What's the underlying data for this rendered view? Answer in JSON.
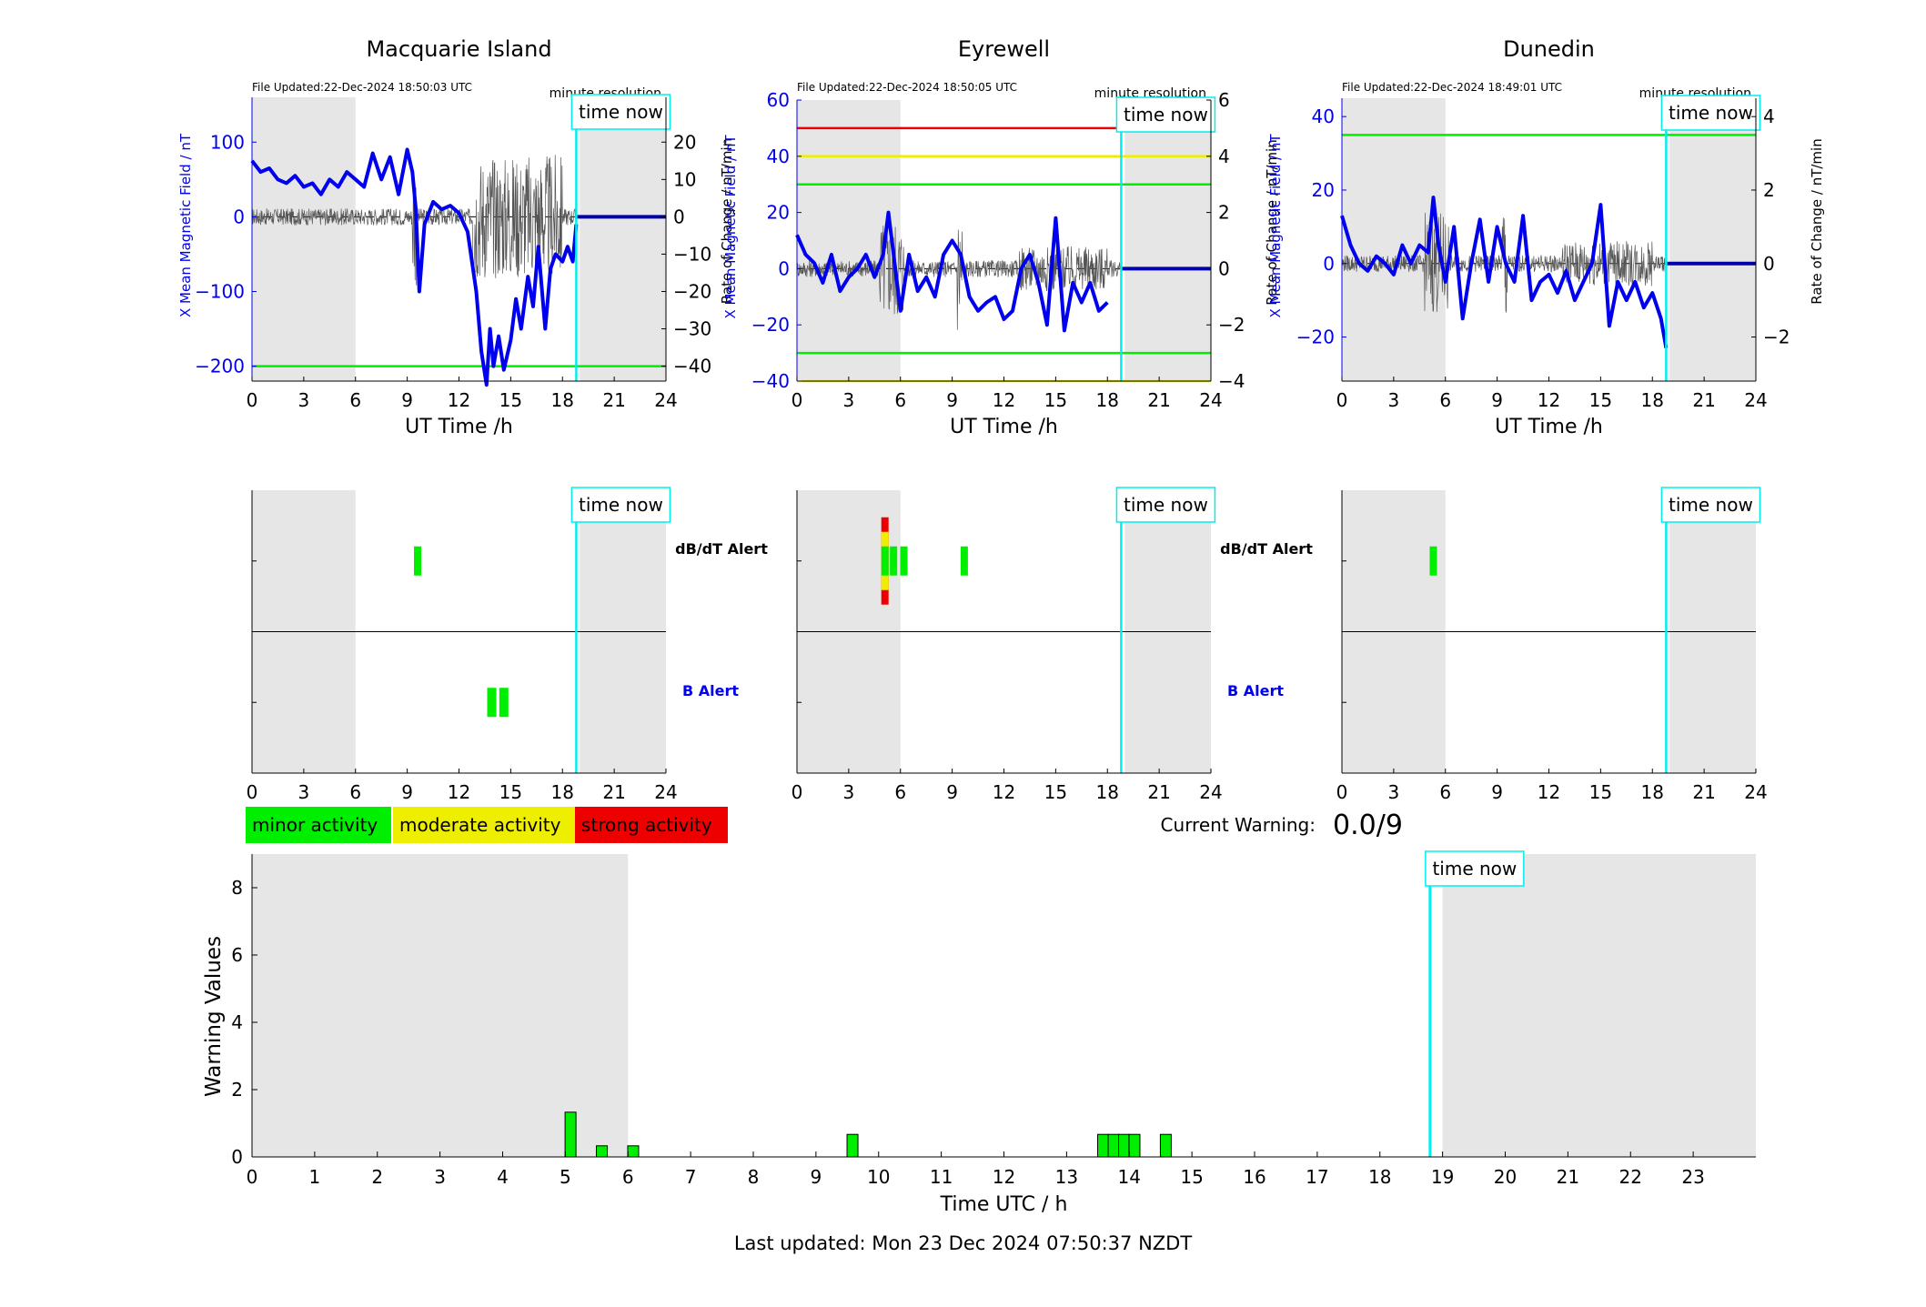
{
  "footer": {
    "last_updated": "Last updated: Mon 23 Dec 2024 07:50:37 NZDT"
  },
  "colors": {
    "field": "#0000ee",
    "rate": "#555555",
    "time_now": "#00eeee",
    "night": "#e6e6e6",
    "green": "#00ee00",
    "yellow": "#eeee00",
    "red": "#ee0000"
  },
  "time_now_label": "time now",
  "legend": {
    "minor": "minor activity",
    "moderate": "moderate activity",
    "strong": "strong activity"
  },
  "current_warning": {
    "label": "Current Warning:",
    "value": "0.0/9"
  },
  "alerts": {
    "dbdt": "dB/dT Alert",
    "b": "B Alert"
  },
  "chart_data": [
    {
      "type": "line",
      "title": "Macquarie Island",
      "file_updated": "File Updated:22-Dec-2024 18:50:03 UTC",
      "resolution": "minute resolution",
      "xlabel": "UT Time /h",
      "ylabel": "X Mean Magnetic Field / nT",
      "y2label": "Rate of Change / nT/min",
      "xlim": [
        0,
        24
      ],
      "ylim": [
        -220,
        160
      ],
      "y2lim": [
        -44,
        32
      ],
      "xticks": [
        0,
        3,
        6,
        9,
        12,
        15,
        18,
        21,
        24
      ],
      "yticks": [
        -200,
        -100,
        0,
        100
      ],
      "y2ticks": [
        -40,
        -30,
        -20,
        -10,
        0,
        10,
        20
      ],
      "night": [
        [
          0,
          6
        ],
        [
          19,
          24
        ]
      ],
      "time_now": 18.8,
      "thresholds": [
        {
          "value": -200,
          "color": "green"
        }
      ],
      "series": [
        {
          "x": [
            0,
            0.5,
            1,
            1.5,
            2,
            2.5,
            3,
            3.5,
            4,
            4.5,
            5,
            5.5,
            6,
            6.5,
            7,
            7.5,
            8,
            8.5,
            9,
            9.3,
            9.5,
            9.7,
            10,
            10.5,
            11,
            11.5,
            12,
            12.5,
            13,
            13.3,
            13.6,
            13.8,
            14,
            14.3,
            14.6,
            15,
            15.3,
            15.6,
            16,
            16.3,
            16.6,
            17,
            17.3,
            17.6,
            18,
            18.3,
            18.6,
            18.8
          ],
          "y": [
            75,
            60,
            65,
            50,
            45,
            55,
            40,
            45,
            30,
            50,
            40,
            60,
            50,
            40,
            85,
            50,
            80,
            30,
            90,
            60,
            10,
            -100,
            -10,
            20,
            10,
            15,
            5,
            -20,
            -100,
            -180,
            -225,
            -150,
            -200,
            -160,
            -205,
            -165,
            -110,
            -150,
            -80,
            -120,
            -40,
            -150,
            -70,
            -50,
            -60,
            -40,
            -60,
            -10
          ]
        }
      ]
    },
    {
      "type": "line",
      "title": "Eyrewell",
      "file_updated": "File Updated:22-Dec-2024 18:50:05 UTC",
      "resolution": "minute resolution",
      "xlabel": "UT Time /h",
      "ylabel": "X Mean Magnetic Field / nT",
      "y2label": "Rate of Change / nT/min",
      "xlim": [
        0,
        24
      ],
      "ylim": [
        -40,
        60
      ],
      "y2lim": [
        -4,
        6
      ],
      "xticks": [
        0,
        3,
        6,
        9,
        12,
        15,
        18,
        21,
        24
      ],
      "yticks": [
        -40,
        -20,
        0,
        20,
        40,
        60
      ],
      "y2ticks": [
        -4,
        -2,
        0,
        2,
        4,
        6
      ],
      "night": [
        [
          0,
          6
        ],
        [
          19,
          24
        ]
      ],
      "time_now": 18.8,
      "thresholds": [
        {
          "value": 50,
          "color": "red"
        },
        {
          "value": 40,
          "color": "yellow"
        },
        {
          "value": 30,
          "color": "green"
        },
        {
          "value": -30,
          "color": "green"
        },
        {
          "value": -40,
          "color": "yellow"
        }
      ],
      "series": [
        {
          "x": [
            0,
            0.5,
            1,
            1.5,
            2,
            2.5,
            3,
            3.5,
            4,
            4.5,
            5,
            5.3,
            5.6,
            6,
            6.5,
            7,
            7.5,
            8,
            8.5,
            9,
            9.5,
            10,
            10.5,
            11,
            11.5,
            12,
            12.5,
            13,
            13.5,
            14,
            14.5,
            15,
            15.5,
            16,
            16.5,
            17,
            17.5,
            18
          ],
          "y": [
            12,
            5,
            2,
            -5,
            5,
            -8,
            -3,
            0,
            5,
            -3,
            5,
            20,
            5,
            -15,
            5,
            -8,
            -3,
            -10,
            5,
            10,
            5,
            -10,
            -15,
            -12,
            -10,
            -18,
            -15,
            0,
            5,
            -5,
            -20,
            18,
            -22,
            -5,
            -12,
            -5,
            -15,
            -12
          ]
        }
      ]
    },
    {
      "type": "line",
      "title": "Dunedin",
      "file_updated": "File Updated:22-Dec-2024 18:49:01 UTC",
      "resolution": "minute resolution",
      "xlabel": "UT Time /h",
      "ylabel": "X Mean Magnetic Field / nT",
      "y2label": "Rate of Change / nT/min",
      "xlim": [
        0,
        24
      ],
      "ylim": [
        -32,
        45
      ],
      "y2lim": [
        -3.2,
        4.5
      ],
      "xticks": [
        0,
        3,
        6,
        9,
        12,
        15,
        18,
        21,
        24
      ],
      "yticks": [
        -20,
        0,
        20,
        40
      ],
      "y2ticks": [
        -2,
        0,
        2,
        4
      ],
      "night": [
        [
          0,
          6
        ],
        [
          19,
          24
        ]
      ],
      "time_now": 18.8,
      "thresholds": [
        {
          "value": 35,
          "color": "green"
        }
      ],
      "series": [
        {
          "x": [
            0,
            0.5,
            1,
            1.5,
            2,
            2.5,
            3,
            3.5,
            4,
            4.5,
            5,
            5.3,
            5.6,
            6,
            6.5,
            7,
            7.5,
            8,
            8.5,
            9,
            9.5,
            10,
            10.5,
            11,
            11.5,
            12,
            12.5,
            13,
            13.5,
            14,
            14.5,
            15,
            15.5,
            16,
            16.5,
            17,
            17.5,
            18,
            18.5,
            18.8
          ],
          "y": [
            13,
            5,
            0,
            -2,
            2,
            0,
            -3,
            5,
            0,
            5,
            3,
            18,
            5,
            -5,
            10,
            -15,
            0,
            12,
            -5,
            10,
            0,
            -5,
            13,
            -10,
            -5,
            -3,
            -8,
            -2,
            -10,
            -5,
            0,
            16,
            -17,
            -5,
            -10,
            -5,
            -12,
            -8,
            -15,
            -23
          ]
        }
      ]
    },
    {
      "type": "bar",
      "panel": "alert",
      "station": "Macquarie Island",
      "xlim": [
        0,
        24
      ],
      "xticks": [
        0,
        3,
        6,
        9,
        12,
        15,
        18,
        21,
        24
      ],
      "night": [
        [
          0,
          6
        ],
        [
          19,
          24
        ]
      ],
      "time_now": 18.8,
      "dbdt_alerts": [
        {
          "t": 9.6,
          "level": 1
        }
      ],
      "b_alerts": [
        {
          "t": 13.9,
          "level": 1
        },
        {
          "t": 14.6,
          "level": 1
        }
      ]
    },
    {
      "type": "bar",
      "panel": "alert",
      "station": "Eyrewell",
      "xlim": [
        0,
        24
      ],
      "xticks": [
        0,
        3,
        6,
        9,
        12,
        15,
        18,
        21,
        24
      ],
      "night": [
        [
          0,
          6
        ],
        [
          19,
          24
        ]
      ],
      "time_now": 18.8,
      "dbdt_alerts": [
        {
          "t": 5.1,
          "level": 3
        },
        {
          "t": 5.6,
          "level": 1
        },
        {
          "t": 6.2,
          "level": 1
        },
        {
          "t": 9.7,
          "level": 1
        }
      ],
      "b_alerts": []
    },
    {
      "type": "bar",
      "panel": "alert",
      "station": "Dunedin",
      "xlim": [
        0,
        24
      ],
      "xticks": [
        0,
        3,
        6,
        9,
        12,
        15,
        18,
        21,
        24
      ],
      "night": [
        [
          0,
          6
        ],
        [
          19,
          24
        ]
      ],
      "time_now": 18.8,
      "dbdt_alerts": [
        {
          "t": 5.3,
          "level": 1
        }
      ],
      "b_alerts": []
    },
    {
      "type": "bar",
      "panel": "warning",
      "xlabel": "Time UTC / h",
      "ylabel": "Warning Values",
      "xlim": [
        0,
        24
      ],
      "ylim": [
        0,
        9
      ],
      "xticks": [
        0,
        1,
        2,
        3,
        4,
        5,
        6,
        7,
        8,
        9,
        10,
        11,
        12,
        13,
        14,
        15,
        16,
        17,
        18,
        19,
        20,
        21,
        22,
        23
      ],
      "yticks": [
        0,
        2,
        4,
        6,
        8
      ],
      "night": [
        [
          0,
          6
        ],
        [
          19,
          24
        ]
      ],
      "time_now": 18.8,
      "x": [
        5.083,
        5.583,
        6.083,
        9.583,
        13.583,
        13.75,
        13.917,
        14.083,
        14.583
      ],
      "values": [
        1.33,
        0.33,
        0.33,
        0.67,
        0.67,
        0.67,
        0.67,
        0.67,
        0.67
      ]
    }
  ]
}
